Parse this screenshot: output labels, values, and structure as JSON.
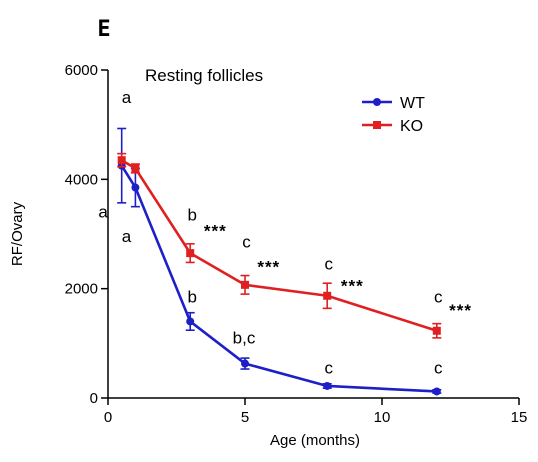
{
  "panel_label": "E",
  "chart_data": {
    "type": "line",
    "title": "Resting follicles",
    "xlabel": "Age (months)",
    "ylabel": "RF/Ovary",
    "xlim": [
      0,
      15
    ],
    "ylim": [
      0,
      6000
    ],
    "x_ticks": [
      0,
      5,
      10,
      15
    ],
    "y_ticks": [
      0,
      2000,
      4000,
      6000
    ],
    "grid": false,
    "legend_position": "top-right",
    "series": [
      {
        "name": "WT",
        "color": "#1f1fc8",
        "marker": "circle",
        "points": [
          {
            "x": 0.5,
            "y": 4250,
            "err": 680
          },
          {
            "x": 1,
            "y": 3850,
            "err": 350
          },
          {
            "x": 3,
            "y": 1400,
            "err": 160
          },
          {
            "x": 5,
            "y": 630,
            "err": 100
          },
          {
            "x": 8,
            "y": 220,
            "err": 40
          },
          {
            "x": 12,
            "y": 120,
            "err": 30
          }
        ]
      },
      {
        "name": "KO",
        "color": "#e02020",
        "marker": "square",
        "points": [
          {
            "x": 0.5,
            "y": 4350,
            "err": 120
          },
          {
            "x": 1,
            "y": 4200,
            "err": 80
          },
          {
            "x": 3,
            "y": 2650,
            "err": 170
          },
          {
            "x": 5,
            "y": 2070,
            "err": 170
          },
          {
            "x": 8,
            "y": 1870,
            "err": 230
          },
          {
            "x": 12,
            "y": 1230,
            "err": 130
          }
        ]
      }
    ],
    "annotations": [
      {
        "text": "a",
        "kind": "letter",
        "x": 0.5,
        "y": 5400
      },
      {
        "text": "a",
        "kind": "letter",
        "x": -0.35,
        "y": 3300
      },
      {
        "text": "a",
        "kind": "letter",
        "x": 0.5,
        "y": 2850
      },
      {
        "text": "b",
        "kind": "letter",
        "x": 2.9,
        "y": 3250
      },
      {
        "text": "***",
        "kind": "stars",
        "x": 3.5,
        "y": 2950
      },
      {
        "text": "b",
        "kind": "letter",
        "x": 2.9,
        "y": 1750
      },
      {
        "text": "c",
        "kind": "letter",
        "x": 4.9,
        "y": 2750
      },
      {
        "text": "***",
        "kind": "stars",
        "x": 5.45,
        "y": 2300
      },
      {
        "text": "b,c",
        "kind": "letter",
        "x": 4.55,
        "y": 1000
      },
      {
        "text": "c",
        "kind": "letter",
        "x": 7.9,
        "y": 2350
      },
      {
        "text": "***",
        "kind": "stars",
        "x": 8.5,
        "y": 1950
      },
      {
        "text": "c",
        "kind": "letter",
        "x": 7.9,
        "y": 450
      },
      {
        "text": "c",
        "kind": "letter",
        "x": 11.9,
        "y": 1750
      },
      {
        "text": "***",
        "kind": "stars",
        "x": 12.45,
        "y": 1500
      },
      {
        "text": "c",
        "kind": "letter",
        "x": 11.9,
        "y": 450
      }
    ]
  }
}
